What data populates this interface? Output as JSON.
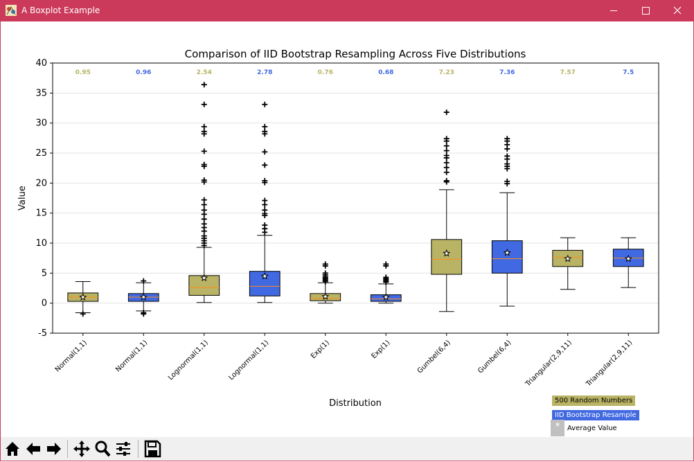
{
  "window": {
    "title": "A Boxplot Example"
  },
  "chart_data": {
    "type": "box",
    "title": "Comparison of IID Bootstrap Resampling Across Five Distributions",
    "xlabel": "Distribution",
    "ylabel": "Value",
    "ylim": [
      -5,
      40
    ],
    "yticks": [
      -5,
      0,
      5,
      10,
      15,
      20,
      25,
      30,
      35,
      40
    ],
    "grid": "y",
    "categories": [
      "Normal(1,1)",
      "Normal(1,1)",
      "Lognormal(1,1)",
      "Lognormal(1,1)",
      "Exp(1)",
      "Exp(1)",
      "Gumbel(6,4)",
      "Gumbel(6,4)",
      "Triangular(2,9,11)",
      "Triangular(2,9,11)"
    ],
    "series": [
      {
        "name": "500 Random Numbers",
        "color": "#b9b365",
        "boxes_at": [
          0,
          2,
          4,
          6,
          8
        ]
      },
      {
        "name": "IID Bootstrap Resample",
        "color": "#4169e1",
        "boxes_at": [
          1,
          3,
          5,
          7,
          9
        ]
      }
    ],
    "top_labels": [
      "0.95",
      "0.96",
      "2.54",
      "2.78",
      "0.76",
      "0.68",
      "7.23",
      "7.36",
      "7.57",
      "7.5"
    ],
    "boxes": [
      {
        "whislo": -1.6,
        "q1": 0.3,
        "med": 1.0,
        "q3": 1.7,
        "whishi": 3.6,
        "mean": 1.0,
        "fliers": [
          -1.8
        ]
      },
      {
        "whislo": -1.3,
        "q1": 0.3,
        "med": 1.0,
        "q3": 1.6,
        "whishi": 3.4,
        "mean": 1.0,
        "fliers": [
          3.7,
          -1.6,
          -1.8
        ]
      },
      {
        "whislo": 0.1,
        "q1": 1.3,
        "med": 2.6,
        "q3": 4.6,
        "whishi": 9.3,
        "mean": 4.2,
        "fliers": [
          9.6,
          10.0,
          10.4,
          10.8,
          11.2,
          12.0,
          12.6,
          13.2,
          14.0,
          14.8,
          15.5,
          16.4,
          17.2,
          20.2,
          20.5,
          22.8,
          23.1,
          25.3,
          28.2,
          28.6,
          29.4,
          33.1,
          36.4
        ]
      },
      {
        "whislo": 0.1,
        "q1": 1.2,
        "med": 2.8,
        "q3": 5.3,
        "whishi": 11.3,
        "mean": 4.5,
        "fliers": [
          11.8,
          12.4,
          13.0,
          14.6,
          14.9,
          15.5,
          16.4,
          17.1,
          20.1,
          20.4,
          23.0,
          25.2,
          28.2,
          28.6,
          29.4,
          33.1
        ]
      },
      {
        "whislo": 0.0,
        "q1": 0.4,
        "med": 0.8,
        "q3": 1.6,
        "whishi": 3.4,
        "mean": 1.1,
        "fliers": [
          3.6,
          3.8,
          4.0,
          4.2,
          4.4,
          4.7,
          5.0,
          6.2,
          6.5
        ]
      },
      {
        "whislo": 0.0,
        "q1": 0.3,
        "med": 0.7,
        "q3": 1.4,
        "whishi": 3.2,
        "mean": 1.0,
        "fliers": [
          3.5,
          3.7,
          3.9,
          4.1,
          4.3,
          6.2,
          6.5
        ]
      },
      {
        "whislo": -1.4,
        "q1": 4.8,
        "med": 7.3,
        "q3": 10.6,
        "whishi": 18.9,
        "mean": 8.3,
        "fliers": [
          20.2,
          20.4,
          21.8,
          22.6,
          23.4,
          24.2,
          24.6,
          25.4,
          26.2,
          27.0,
          27.4,
          31.8
        ]
      },
      {
        "whislo": -0.5,
        "q1": 5.0,
        "med": 7.4,
        "q3": 10.4,
        "whishi": 18.4,
        "mean": 8.4,
        "fliers": [
          19.9,
          20.3,
          22.4,
          22.8,
          23.2,
          24.0,
          24.5,
          25.7,
          26.4,
          27.0,
          27.4
        ]
      },
      {
        "whislo": 2.3,
        "q1": 6.1,
        "med": 7.6,
        "q3": 8.8,
        "whishi": 10.9,
        "mean": 7.4,
        "fliers": []
      },
      {
        "whislo": 2.6,
        "q1": 6.1,
        "med": 7.5,
        "q3": 9.0,
        "whishi": 10.9,
        "mean": 7.4,
        "fliers": []
      }
    ]
  },
  "legend": {
    "items": [
      "500 Random Numbers",
      "IID Bootstrap Resample",
      "Average Value"
    ],
    "mean_marker": "*"
  },
  "toolbar": {
    "icons": [
      "home-icon",
      "back-arrow-icon",
      "forward-arrow-icon",
      "pan-icon",
      "zoom-icon",
      "configure-subplots-icon",
      "save-icon"
    ]
  }
}
